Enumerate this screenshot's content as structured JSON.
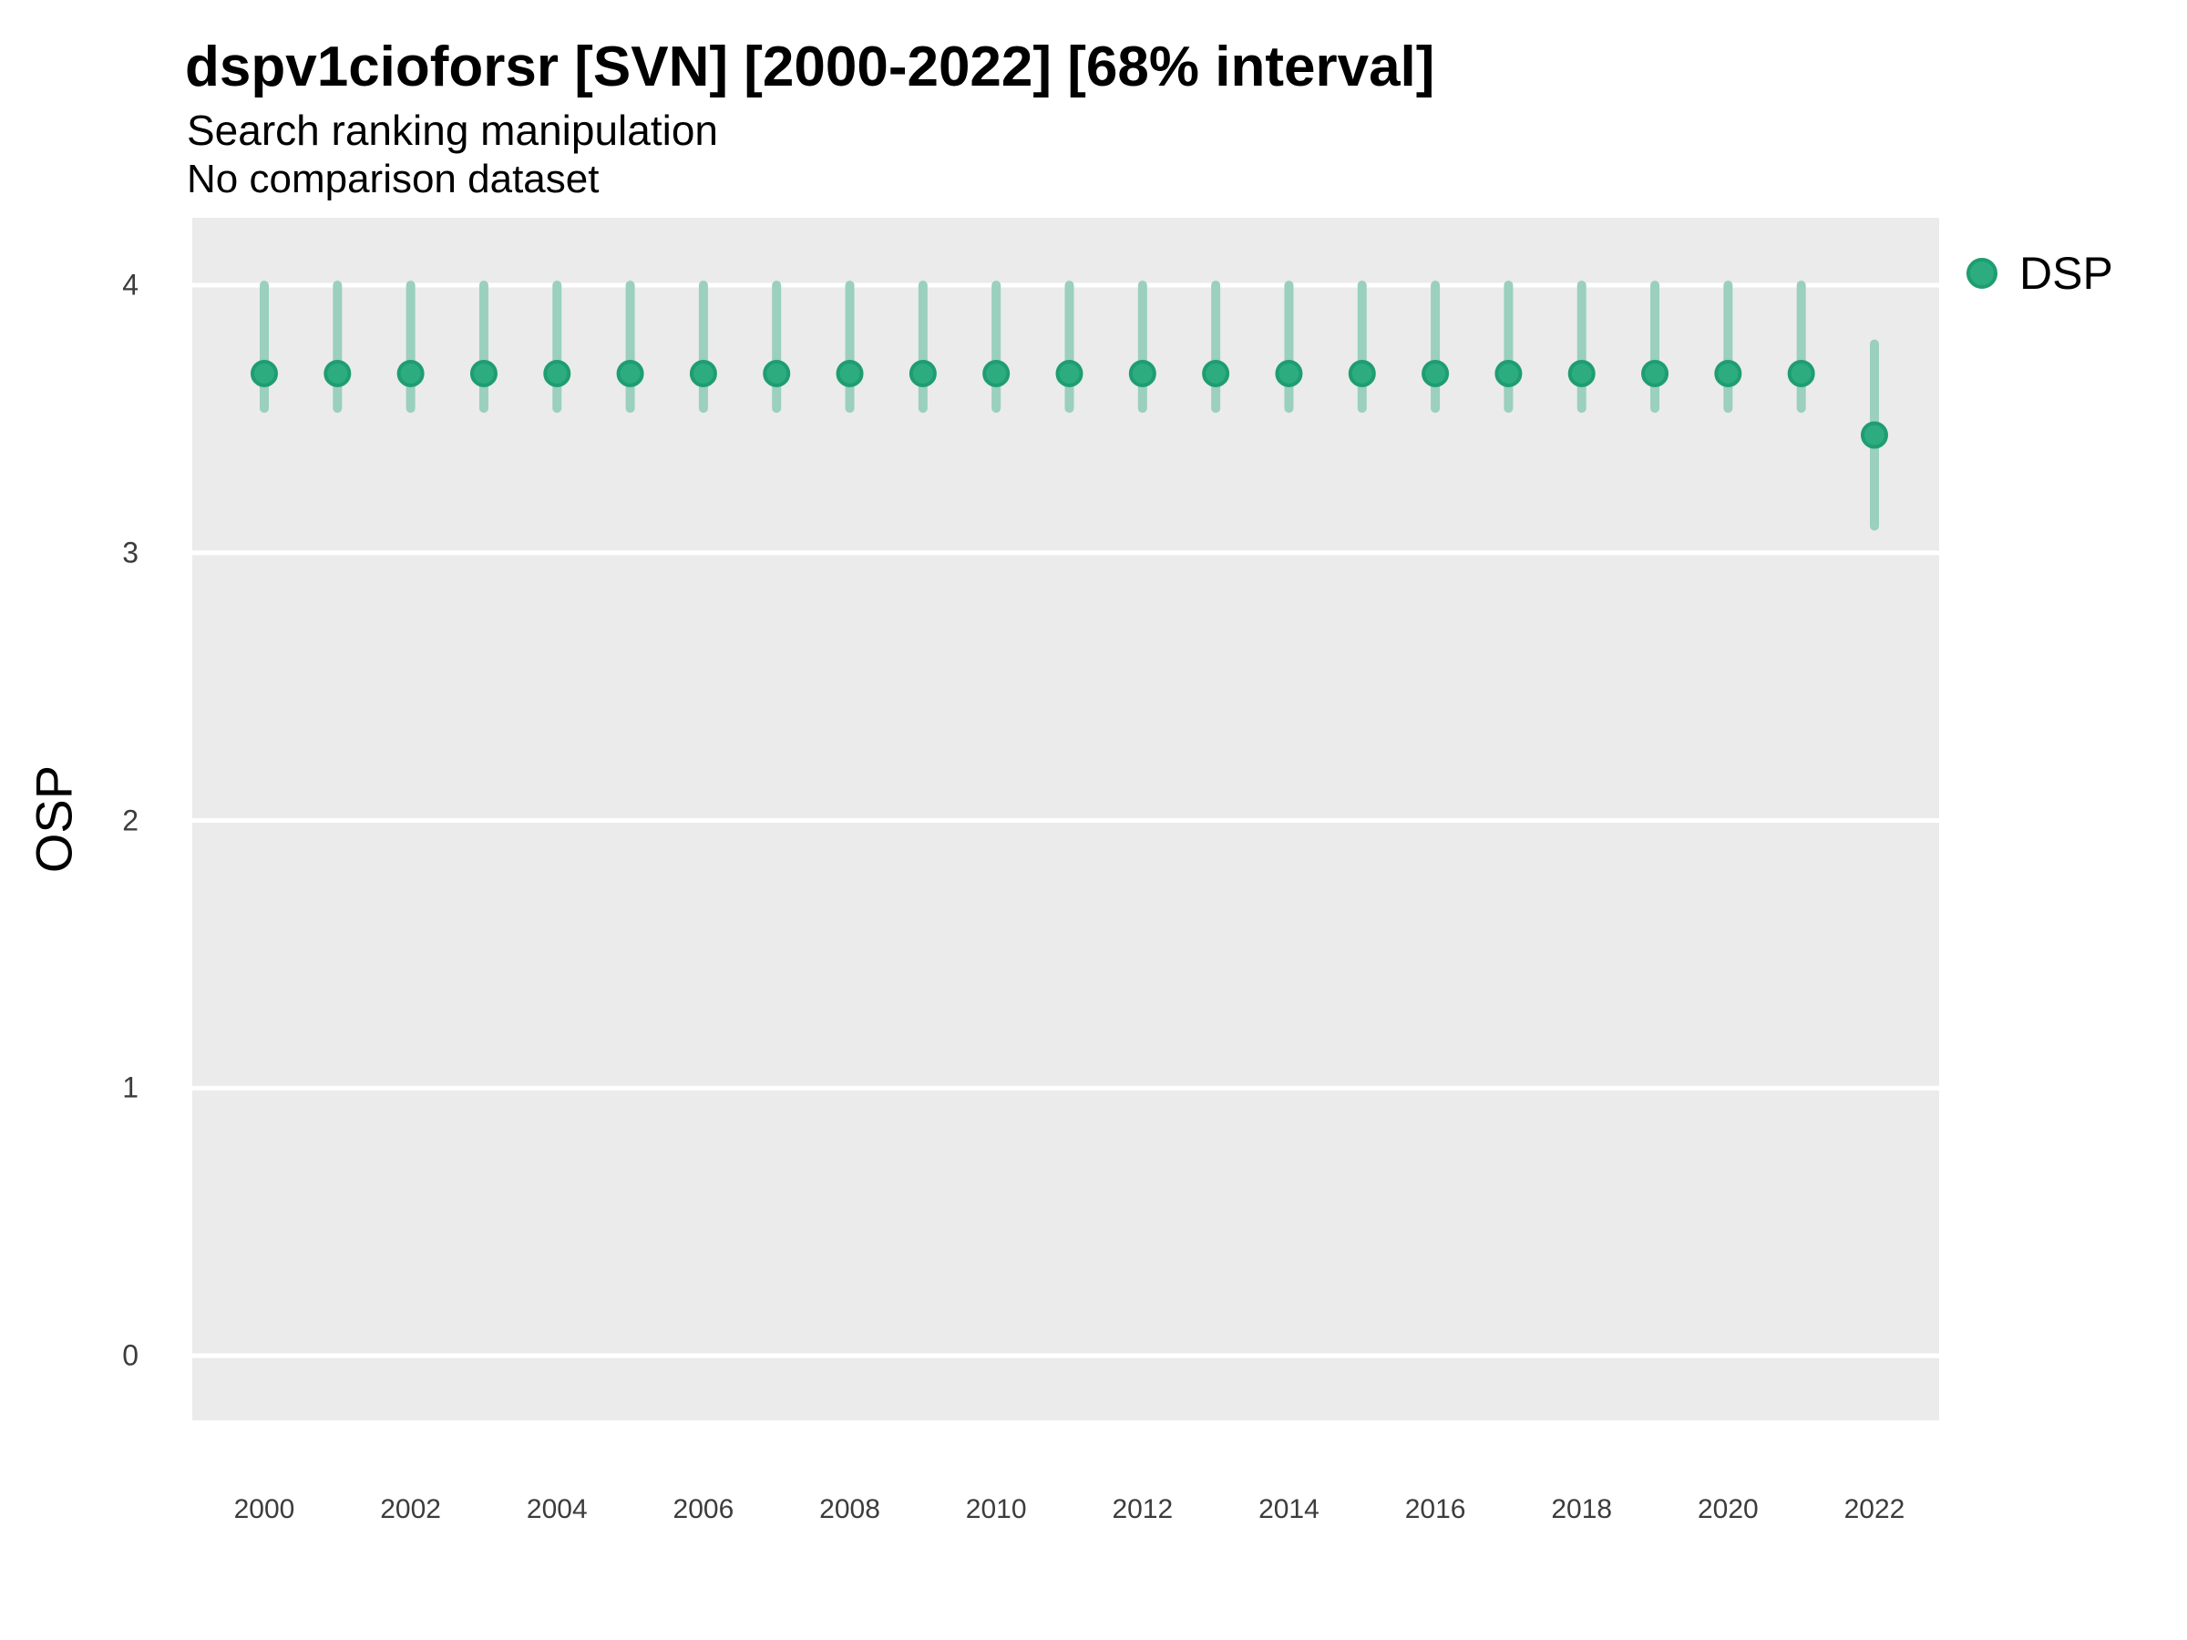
{
  "header": {
    "title": "dspv1cioforsr [SVN] [2000-2022] [68% interval]",
    "subtitle": "Search ranking manipulation",
    "note": "No comparison dataset"
  },
  "y_axis": {
    "label": "OSP"
  },
  "x_axis": {
    "tick_labels": [
      "2000",
      "2002",
      "2004",
      "2006",
      "2008",
      "2010",
      "2012",
      "2014",
      "2016",
      "2018",
      "2020",
      "2022"
    ]
  },
  "legend": {
    "position": "right-top",
    "items": [
      {
        "label": "DSP",
        "marker": "circle"
      }
    ]
  },
  "colors": {
    "point_fill": "#2CAC7F",
    "point_stroke": "#1F9D72",
    "interval_line": "#9AD0BD",
    "panel_bg": "#EBEBEB",
    "gridline": "#FFFFFF",
    "tick_text": "#3C3C3C",
    "text": "#000000"
  },
  "chart_data": {
    "type": "pointrange",
    "title": "dspv1cioforsr [SVN] [2000-2022] [68% interval]",
    "subtitle": "Search ranking manipulation",
    "note": "No comparison dataset",
    "xlabel": "",
    "ylabel": "OSP",
    "interval": "68%",
    "grid": "horizontal-major-only",
    "legend_position": "right-top",
    "x": [
      2000,
      2001,
      2002,
      2003,
      2004,
      2005,
      2006,
      2007,
      2008,
      2009,
      2010,
      2011,
      2012,
      2013,
      2014,
      2015,
      2016,
      2017,
      2018,
      2019,
      2020,
      2021,
      2022
    ],
    "series": [
      {
        "name": "DSP",
        "mid": [
          3.67,
          3.67,
          3.67,
          3.67,
          3.67,
          3.67,
          3.67,
          3.67,
          3.67,
          3.67,
          3.67,
          3.67,
          3.67,
          3.67,
          3.67,
          3.67,
          3.67,
          3.67,
          3.67,
          3.67,
          3.67,
          3.67,
          3.44
        ],
        "lo": [
          3.54,
          3.54,
          3.54,
          3.54,
          3.54,
          3.54,
          3.54,
          3.54,
          3.54,
          3.54,
          3.54,
          3.54,
          3.54,
          3.54,
          3.54,
          3.54,
          3.54,
          3.54,
          3.54,
          3.54,
          3.54,
          3.54,
          3.1
        ],
        "hi": [
          4.0,
          4.0,
          4.0,
          4.0,
          4.0,
          4.0,
          4.0,
          4.0,
          4.0,
          4.0,
          4.0,
          4.0,
          4.0,
          4.0,
          4.0,
          4.0,
          4.0,
          4.0,
          4.0,
          4.0,
          4.0,
          4.0,
          3.78
        ]
      }
    ],
    "x_ticks": [
      2000,
      2002,
      2004,
      2006,
      2008,
      2010,
      2012,
      2014,
      2016,
      2018,
      2020,
      2022
    ],
    "y_ticks": [
      4,
      3,
      2,
      1,
      0
    ],
    "ylim": [
      -0.25,
      4.25
    ],
    "xlim": [
      1999.0,
      2022.9
    ]
  }
}
